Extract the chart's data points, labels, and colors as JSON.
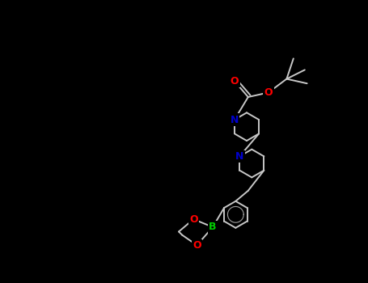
{
  "background_color": "#000000",
  "fig_width": 4.55,
  "fig_height": 3.5,
  "dpi": 100,
  "bond_color": "#c8c8c8",
  "lw": 1.4,
  "atom_colors": {
    "O": "#ff0000",
    "N": "#0000cd",
    "B": "#00cc00",
    "C": "#c8c8c8"
  }
}
